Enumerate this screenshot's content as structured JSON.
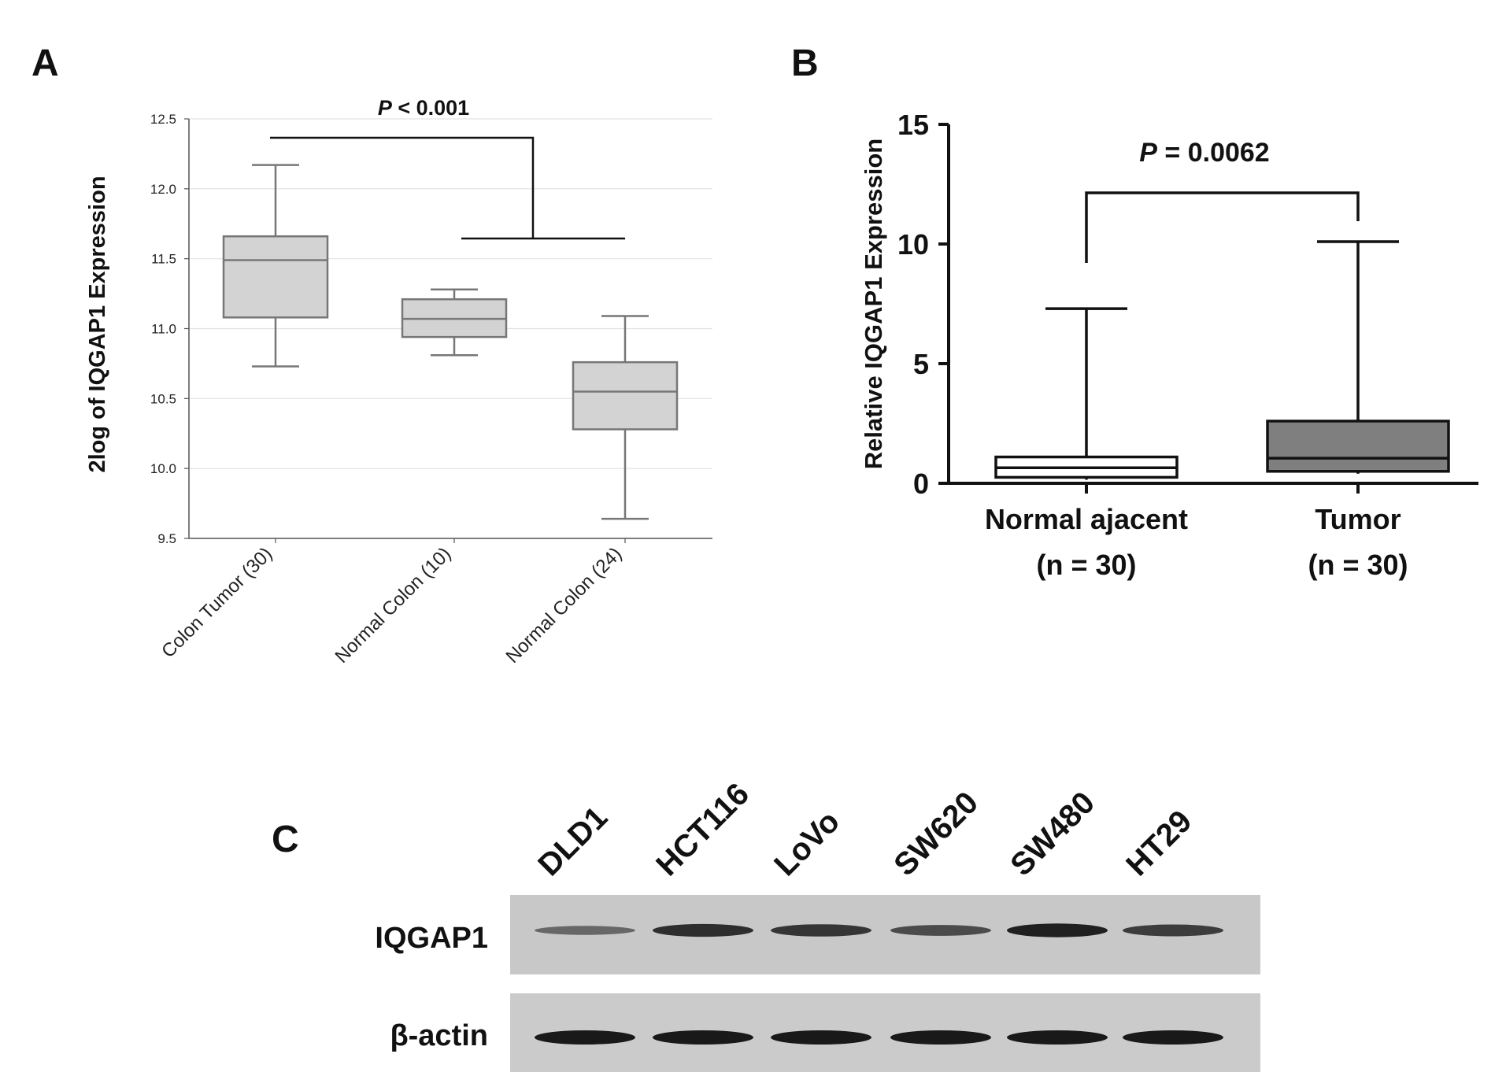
{
  "panels": {
    "a": "A",
    "b": "B",
    "c": "C"
  },
  "chart_data": [
    {
      "panel": "A",
      "type": "box",
      "ylabel": "2log of IQGAP1 Expression",
      "ylim": [
        9.5,
        12.5
      ],
      "yticks": [
        "12.5",
        "12.0",
        "11.5",
        "11.0",
        "10.5",
        "10.0",
        "9.5"
      ],
      "grid": true,
      "categories": [
        "Colon Tumor (30)",
        "Normal Colon (10)",
        "Normal Colon (24)"
      ],
      "boxes": [
        {
          "min": 10.73,
          "q1": 11.08,
          "median": 11.49,
          "q3": 11.66,
          "max": 12.17
        },
        {
          "min": 10.81,
          "q1": 10.94,
          "median": 11.07,
          "q3": 11.21,
          "max": 11.28
        },
        {
          "min": 9.64,
          "q1": 10.28,
          "median": 10.55,
          "q3": 10.76,
          "max": 11.09
        }
      ],
      "box_color": "#d3d3d3",
      "significance": {
        "p_symbol": "P",
        "p_text": " < 0.001"
      }
    },
    {
      "panel": "B",
      "type": "box",
      "ylabel": "Relative IQGAP1 Expression",
      "ylim": [
        0,
        15
      ],
      "yticks": [
        "15",
        "10",
        "5",
        "0"
      ],
      "grid": false,
      "categories": [
        {
          "name": "Normal ajacent",
          "n": "(n = 30)"
        },
        {
          "name": "Tumor",
          "n": "(n = 30)"
        }
      ],
      "boxes": [
        {
          "min": 0.15,
          "q1": 0.25,
          "median": 0.65,
          "q3": 1.1,
          "max": 7.3,
          "fill": "#ffffff"
        },
        {
          "min": 0.4,
          "q1": 0.5,
          "median": 1.05,
          "q3": 2.6,
          "max": 10.1,
          "fill": "#7f7f7f"
        }
      ],
      "significance": {
        "p_symbol": "P",
        "p_text": " = 0.0062"
      }
    }
  ],
  "western_blot": {
    "lanes": [
      "DLD1",
      "HCT116",
      "LoVo",
      "SW620",
      "SW480",
      "HT29"
    ],
    "rows": [
      {
        "label": "IQGAP1",
        "intensity": [
          0.45,
          0.85,
          0.8,
          0.65,
          0.95,
          0.75
        ]
      },
      {
        "label": "β-actin",
        "intensity": [
          1.0,
          1.0,
          1.0,
          1.0,
          1.0,
          1.0
        ]
      }
    ]
  }
}
